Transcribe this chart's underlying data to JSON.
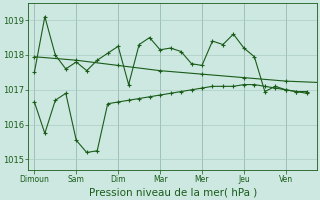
{
  "background_color": "#cce8e0",
  "grid_color": "#aaccc4",
  "line_color": "#1a5c1a",
  "marker_color": "#1a5c1a",
  "xlabel": "Pression niveau de la mer( hPa )",
  "xlabel_fontsize": 7.5,
  "ylim": [
    1014.7,
    1019.5
  ],
  "yticks": [
    1015,
    1016,
    1017,
    1018,
    1019
  ],
  "xtick_labels": [
    "Dimoun",
    "Sam",
    "Dim",
    "Mar",
    "Mer",
    "Jeu",
    "Ven"
  ],
  "n_days": 7,
  "series1_x": [
    0,
    0.5,
    1,
    1.5,
    2,
    2.5,
    3,
    3.5,
    4,
    4.5,
    5,
    5.5,
    6,
    6.5,
    7,
    7.5,
    8,
    8.5,
    9,
    9.5,
    10,
    10.5,
    11,
    11.5,
    12,
    12.5,
    13
  ],
  "series1": [
    1017.5,
    1019.1,
    1018.0,
    1017.6,
    1017.8,
    1017.55,
    1017.85,
    1018.05,
    1018.25,
    1017.15,
    1018.3,
    1018.5,
    1018.15,
    1018.2,
    1018.1,
    1017.75,
    1017.7,
    1018.4,
    1018.3,
    1018.6,
    1018.2,
    1017.95,
    1016.95,
    1017.1,
    1017.0,
    1016.95,
    1016.95
  ],
  "series2_x": [
    0,
    2,
    4,
    6,
    8,
    10,
    12,
    14
  ],
  "series2": [
    1017.95,
    1017.85,
    1017.7,
    1017.55,
    1017.45,
    1017.35,
    1017.25,
    1017.2
  ],
  "series3_x": [
    0,
    0.5,
    1,
    1.5,
    2,
    2.5,
    3,
    3.5,
    4,
    4.5,
    5,
    5.5,
    6,
    6.5,
    7,
    7.5,
    8,
    8.5,
    9,
    9.5,
    10,
    10.5,
    11,
    11.5,
    12,
    12.5,
    13
  ],
  "series3": [
    1016.65,
    1015.75,
    1016.7,
    1016.9,
    1015.55,
    1015.2,
    1015.25,
    1016.6,
    1016.65,
    1016.7,
    1016.75,
    1016.8,
    1016.85,
    1016.9,
    1016.95,
    1017.0,
    1017.05,
    1017.1,
    1017.1,
    1017.1,
    1017.15,
    1017.15,
    1017.1,
    1017.05,
    1017.0,
    1016.95,
    1016.9
  ]
}
